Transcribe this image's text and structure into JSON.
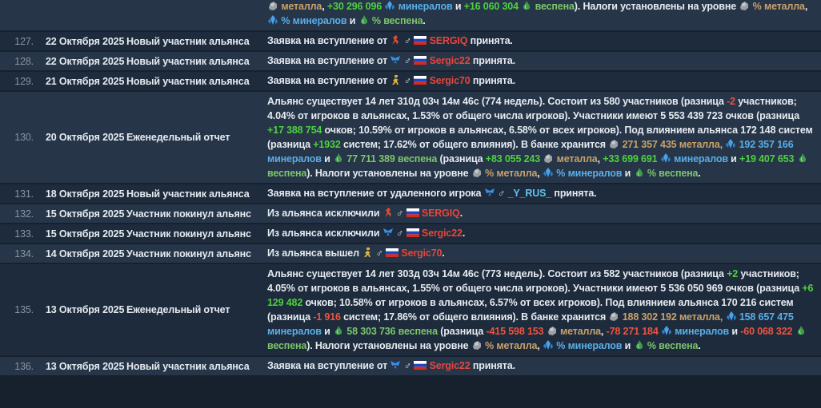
{
  "rows": [
    {
      "message": [
        {
          "icon": "metal"
        },
        {
          "text": " металла",
          "color": "#c9a26a"
        },
        {
          "text": ", "
        },
        {
          "text": "+30 296 096",
          "color": "#4ed13f"
        },
        {
          "text": " "
        },
        {
          "icon": "crystal"
        },
        {
          "text": " минералов",
          "color": "#5aaee8"
        },
        {
          "text": " и "
        },
        {
          "text": "+16 060 304",
          "color": "#4ed13f"
        },
        {
          "text": " "
        },
        {
          "icon": "vespene"
        },
        {
          "text": " веспена",
          "color": "#7cc66a"
        },
        {
          "text": "). Налоги установлены на уровне "
        },
        {
          "icon": "metal"
        },
        {
          "text": " % металла",
          "color": "#c9a26a"
        },
        {
          "text": ", "
        },
        {
          "icon": "crystal"
        },
        {
          "text": " % минералов",
          "color": "#5aaee8"
        },
        {
          "text": " и "
        },
        {
          "icon": "vespene"
        },
        {
          "text": " % веспена",
          "color": "#7cc66a"
        },
        {
          "text": "."
        }
      ]
    },
    {
      "num": "127.",
      "date": "22 Октября 2025",
      "type": "Новый участник альянса",
      "message": [
        {
          "text": "Заявка на вступление от "
        },
        {
          "icon": "race-red"
        },
        {
          "text": " ♂ "
        },
        {
          "icon": "flag-ru"
        },
        {
          "text": " SERGIQ",
          "color": "#e5473c"
        },
        {
          "text": " принята."
        }
      ]
    },
    {
      "num": "128.",
      "date": "22 Октября 2025",
      "type": "Новый участник альянса",
      "message": [
        {
          "text": "Заявка на вступление от "
        },
        {
          "icon": "race-blue"
        },
        {
          "text": " ♂ "
        },
        {
          "icon": "flag-ru"
        },
        {
          "text": " Sergic22",
          "color": "#e5473c"
        },
        {
          "text": " принята."
        }
      ]
    },
    {
      "num": "129.",
      "date": "21 Октября 2025",
      "type": "Новый участник альянса",
      "message": [
        {
          "text": "Заявка на вступление от "
        },
        {
          "icon": "race-yellow"
        },
        {
          "text": " ♂ "
        },
        {
          "icon": "flag-ru"
        },
        {
          "text": " Sergic70",
          "color": "#e5473c"
        },
        {
          "text": " принята."
        }
      ]
    },
    {
      "num": "130.",
      "date": "20 Октября 2025",
      "type": "Еженедельный отчет",
      "message": [
        {
          "text": "Альянс существует 14 лет 310д 03ч 14м 46с (774 недель). Состоит из 580 участников (разница "
        },
        {
          "text": "-2",
          "color": "#f0533f"
        },
        {
          "text": " участников; 4.04% от игроков в альянсах, 1.53% от общего числа игроков). Участники имеют 5 553 439 723 очков (разница "
        },
        {
          "text": "+17 388 754",
          "color": "#4ed13f"
        },
        {
          "text": " очков; 10.59% от игроков в альянсах, 6.58% от всех игроков). Под влиянием альянса 172 148 систем (разница "
        },
        {
          "text": "+1932",
          "color": "#4ed13f"
        },
        {
          "text": " систем; 17.62% от общего влияния). В банке хранится "
        },
        {
          "icon": "metal"
        },
        {
          "text": " 271 357 435 металла,",
          "color": "#c9a26a"
        },
        {
          "text": " "
        },
        {
          "icon": "crystal"
        },
        {
          "text": " 192 357 166 минералов",
          "color": "#5aaee8"
        },
        {
          "text": " и "
        },
        {
          "icon": "vespene"
        },
        {
          "text": " 77 711 389 веспена",
          "color": "#7cc66a"
        },
        {
          "text": " (разница "
        },
        {
          "text": "+83 055 243",
          "color": "#4ed13f"
        },
        {
          "text": " "
        },
        {
          "icon": "metal"
        },
        {
          "text": " металла",
          "color": "#c9a26a"
        },
        {
          "text": ", "
        },
        {
          "text": "+33 699 691",
          "color": "#4ed13f"
        },
        {
          "text": " "
        },
        {
          "icon": "crystal"
        },
        {
          "text": " минералов",
          "color": "#5aaee8"
        },
        {
          "text": " и "
        },
        {
          "text": "+19 407 653",
          "color": "#4ed13f"
        },
        {
          "text": " "
        },
        {
          "icon": "vespene"
        },
        {
          "text": " веспена",
          "color": "#7cc66a"
        },
        {
          "text": "). Налоги установлены на уровне "
        },
        {
          "icon": "metal"
        },
        {
          "text": " % металла",
          "color": "#c9a26a"
        },
        {
          "text": ", "
        },
        {
          "icon": "crystal"
        },
        {
          "text": " % минералов",
          "color": "#5aaee8"
        },
        {
          "text": " и "
        },
        {
          "icon": "vespene"
        },
        {
          "text": " % веспена",
          "color": "#7cc66a"
        },
        {
          "text": "."
        }
      ]
    },
    {
      "num": "131.",
      "date": "18 Октября 2025",
      "type": "Новый участник альянса",
      "message": [
        {
          "text": "Заявка на вступление от удаленного игрока "
        },
        {
          "icon": "race-blue"
        },
        {
          "text": " ♂ "
        },
        {
          "text": "_Y_RUS_",
          "color": "#62c4ee"
        },
        {
          "text": " принята."
        }
      ]
    },
    {
      "num": "132.",
      "date": "15 Октября 2025",
      "type": "Участник покинул альянс",
      "message": [
        {
          "text": "Из альянса исключили "
        },
        {
          "icon": "race-red"
        },
        {
          "text": " ♂ "
        },
        {
          "icon": "flag-ru"
        },
        {
          "text": " SERGIQ",
          "color": "#e5473c"
        },
        {
          "text": "."
        }
      ]
    },
    {
      "num": "133.",
      "date": "15 Октября 2025",
      "type": "Участник покинул альянс",
      "message": [
        {
          "text": "Из альянса исключили "
        },
        {
          "icon": "race-blue"
        },
        {
          "text": " ♂ "
        },
        {
          "icon": "flag-ru"
        },
        {
          "text": " Sergic22",
          "color": "#e5473c"
        },
        {
          "text": "."
        }
      ]
    },
    {
      "num": "134.",
      "date": "14 Октября 2025",
      "type": "Участник покинул альянс",
      "message": [
        {
          "text": "Из альянса вышел "
        },
        {
          "icon": "race-yellow"
        },
        {
          "text": " ♂ "
        },
        {
          "icon": "flag-ru"
        },
        {
          "text": " Sergic70",
          "color": "#e5473c"
        },
        {
          "text": "."
        }
      ]
    },
    {
      "num": "135.",
      "date": "13 Октября 2025",
      "type": "Еженедельный отчет",
      "message": [
        {
          "text": "Альянс существует 14 лет 303д 03ч 14м 46с (773 недель). Состоит из 582 участников (разница "
        },
        {
          "text": "+2",
          "color": "#4ed13f"
        },
        {
          "text": " участников; 4.05% от игроков в альянсах, 1.55% от общего числа игроков). Участники имеют 5 536 050 969 очков (разница "
        },
        {
          "text": "+6 129 482",
          "color": "#4ed13f"
        },
        {
          "text": " очков; 10.58% от игроков в альянсах, 6.57% от всех игроков). Под влиянием альянса 170 216 систем (разница "
        },
        {
          "text": "-1 916",
          "color": "#f0533f"
        },
        {
          "text": " систем; 17.86% от общего влияния). В банке хранится "
        },
        {
          "icon": "metal"
        },
        {
          "text": " 188 302 192 металла,",
          "color": "#c9a26a"
        },
        {
          "text": " "
        },
        {
          "icon": "crystal"
        },
        {
          "text": " 158 657 475 минералов",
          "color": "#5aaee8"
        },
        {
          "text": " и "
        },
        {
          "icon": "vespene"
        },
        {
          "text": " 58 303 736 веспена",
          "color": "#7cc66a"
        },
        {
          "text": " (разница "
        },
        {
          "text": "-415 598 153",
          "color": "#f0533f"
        },
        {
          "text": " "
        },
        {
          "icon": "metal"
        },
        {
          "text": " металла",
          "color": "#c9a26a"
        },
        {
          "text": ", "
        },
        {
          "text": "-78 271 184",
          "color": "#f0533f"
        },
        {
          "text": " "
        },
        {
          "icon": "crystal"
        },
        {
          "text": " минералов",
          "color": "#5aaee8"
        },
        {
          "text": " и "
        },
        {
          "text": "-60 068 322",
          "color": "#f0533f"
        },
        {
          "text": " "
        },
        {
          "icon": "vespene"
        },
        {
          "text": " веспена",
          "color": "#7cc66a"
        },
        {
          "text": "). Налоги установлены на уровне "
        },
        {
          "icon": "metal"
        },
        {
          "text": " % металла",
          "color": "#c9a26a"
        },
        {
          "text": ", "
        },
        {
          "icon": "crystal"
        },
        {
          "text": " % минералов",
          "color": "#5aaee8"
        },
        {
          "text": " и "
        },
        {
          "icon": "vespene"
        },
        {
          "text": " % веспена",
          "color": "#7cc66a"
        },
        {
          "text": "."
        }
      ]
    },
    {
      "num": "136.",
      "date": "13 Октября 2025",
      "type": "Новый участник альянса",
      "message": [
        {
          "text": "Заявка на вступление от "
        },
        {
          "icon": "race-blue"
        },
        {
          "text": " ♂ "
        },
        {
          "icon": "flag-ru"
        },
        {
          "text": " Sergic22",
          "color": "#e5473c"
        },
        {
          "text": " принята."
        }
      ]
    }
  ]
}
